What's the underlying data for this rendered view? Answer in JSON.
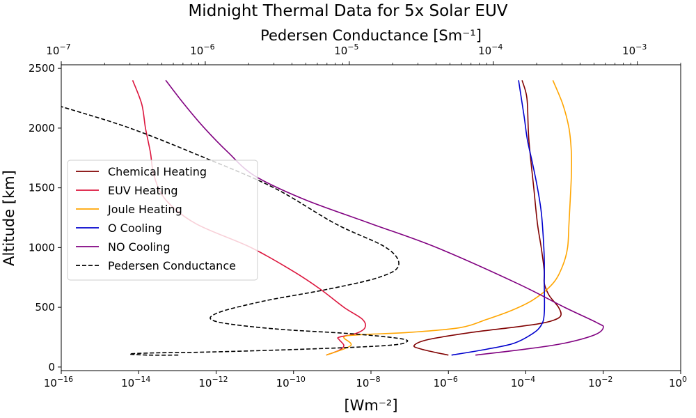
{
  "chart_data": {
    "type": "line",
    "title": "Midnight Thermal Data for 5x Solar EUV",
    "xlabel": "[Wm⁻²]",
    "ylabel": "Altitude [km]",
    "top_xlabel": "Pedersen Conductance [Sm⁻¹]",
    "xscale": "log",
    "xlim": [
      1e-16,
      1
    ],
    "top_xlim": [
      1e-07,
      0.002
    ],
    "ylim": [
      -30,
      2530
    ],
    "x_ticks": [
      1e-16,
      1e-14,
      1e-12,
      1e-10,
      1e-08,
      1e-06,
      0.0001,
      0.01,
      1
    ],
    "x_tick_labels": [
      {
        "base": "10",
        "exp": "−16"
      },
      {
        "base": "10",
        "exp": "−14"
      },
      {
        "base": "10",
        "exp": "−12"
      },
      {
        "base": "10",
        "exp": "−10"
      },
      {
        "base": "10",
        "exp": "−8"
      },
      {
        "base": "10",
        "exp": "−6"
      },
      {
        "base": "10",
        "exp": "−4"
      },
      {
        "base": "10",
        "exp": "−2"
      },
      {
        "base": "10",
        "exp": "0"
      }
    ],
    "top_x_ticks": [
      1e-07,
      1e-06,
      1e-05,
      0.0001,
      0.001
    ],
    "top_x_tick_labels": [
      {
        "base": "10",
        "exp": "−7"
      },
      {
        "base": "10",
        "exp": "−6"
      },
      {
        "base": "10",
        "exp": "−5"
      },
      {
        "base": "10",
        "exp": "−4"
      },
      {
        "base": "10",
        "exp": "−3"
      }
    ],
    "y_ticks": [
      0,
      500,
      1000,
      1500,
      2000,
      2500
    ],
    "y_tick_labels": [
      "0",
      "500",
      "1000",
      "1500",
      "2000",
      "2500"
    ],
    "legend_position": "center-left",
    "series": [
      {
        "name": "Chemical Heating",
        "color": "#800000",
        "axis": "bottom",
        "dashed": false,
        "points": [
          [
            1e-06,
            100
          ],
          [
            5e-07,
            120
          ],
          [
            2e-07,
            150
          ],
          [
            1.3e-07,
            180
          ],
          [
            3e-07,
            230
          ],
          [
            4e-06,
            290
          ],
          [
            4e-05,
            330
          ],
          [
            0.0002,
            360
          ],
          [
            0.0005,
            390
          ],
          [
            0.0008,
            430
          ],
          [
            0.0007,
            500
          ],
          [
            0.0004,
            600
          ],
          [
            0.0003,
            700
          ],
          [
            0.0003,
            800
          ],
          [
            0.00025,
            1000
          ],
          [
            0.0002,
            1200
          ],
          [
            0.00016,
            1500
          ],
          [
            0.00012,
            1900
          ],
          [
            0.00011,
            2200
          ],
          [
            0.0001,
            2300
          ],
          [
            8e-05,
            2400
          ]
        ]
      },
      {
        "name": "EUV Heating",
        "color": "#dc143c",
        "axis": "bottom",
        "dashed": false,
        "points": [
          [
            7e-10,
            100
          ],
          [
            1.5e-09,
            140
          ],
          [
            2e-09,
            180
          ],
          [
            1.5e-09,
            230
          ],
          [
            1.5e-09,
            250
          ],
          [
            4e-09,
            280
          ],
          [
            7e-09,
            330
          ],
          [
            6e-09,
            400
          ],
          [
            2e-09,
            500
          ],
          [
            5e-10,
            650
          ],
          [
            1e-10,
            800
          ],
          [
            8e-12,
            1000
          ],
          [
            3e-13,
            1200
          ],
          [
            5e-14,
            1400
          ],
          [
            2.5e-14,
            1600
          ],
          [
            2e-14,
            1800
          ],
          [
            1.5e-14,
            2000
          ],
          [
            1.2e-14,
            2200
          ],
          [
            7e-15,
            2400
          ]
        ]
      },
      {
        "name": "Joule Heating",
        "color": "#ffa500",
        "axis": "bottom",
        "dashed": false,
        "points": [
          [
            7e-10,
            100
          ],
          [
            3e-09,
            180
          ],
          [
            2e-09,
            250
          ],
          [
            5e-09,
            270
          ],
          [
            1e-07,
            290
          ],
          [
            2e-06,
            330
          ],
          [
            1e-05,
            400
          ],
          [
            4e-05,
            470
          ],
          [
            0.00015,
            560
          ],
          [
            0.0005,
            700
          ],
          [
            0.0009,
            850
          ],
          [
            0.0012,
            1000
          ],
          [
            0.0013,
            1200
          ],
          [
            0.0014,
            1400
          ],
          [
            0.0015,
            1600
          ],
          [
            0.0015,
            1800
          ],
          [
            0.0013,
            2000
          ],
          [
            0.0009,
            2200
          ],
          [
            0.0005,
            2400
          ]
        ]
      },
      {
        "name": "O Cooling",
        "color": "#0000cd",
        "axis": "bottom",
        "dashed": false,
        "points": [
          [
            1.2e-06,
            100
          ],
          [
            1e-05,
            150
          ],
          [
            5e-05,
            200
          ],
          [
            0.00015,
            280
          ],
          [
            0.00025,
            350
          ],
          [
            0.0003,
            450
          ],
          [
            0.0003,
            700
          ],
          [
            0.0003,
            900
          ],
          [
            0.00028,
            1100
          ],
          [
            0.00025,
            1300
          ],
          [
            0.0002,
            1500
          ],
          [
            0.00015,
            1700
          ],
          [
            0.00011,
            1900
          ],
          [
            9e-05,
            2100
          ],
          [
            6.5e-05,
            2400
          ]
        ]
      },
      {
        "name": "NO Cooling",
        "color": "#800080",
        "axis": "bottom",
        "dashed": false,
        "points": [
          [
            5e-06,
            100
          ],
          [
            0.0001,
            150
          ],
          [
            0.001,
            200
          ],
          [
            0.006,
            270
          ],
          [
            0.01,
            330
          ],
          [
            0.007,
            370
          ],
          [
            0.001,
            500
          ],
          [
            6e-05,
            700
          ],
          [
            5e-07,
            1000
          ],
          [
            1e-08,
            1200
          ],
          [
            2e-10,
            1400
          ],
          [
            1e-11,
            1600
          ],
          [
            2e-12,
            1800
          ],
          [
            5e-13,
            2000
          ],
          [
            1.5e-13,
            2200
          ],
          [
            5e-14,
            2400
          ]
        ]
      },
      {
        "name": "Pedersen Conductance",
        "color": "#000000",
        "axis": "top",
        "dashed": true,
        "points": [
          [
            6.5e-07,
            100
          ],
          [
            4e-07,
            100
          ],
          [
            3e-07,
            110
          ],
          [
            5e-07,
            120
          ],
          [
            1e-06,
            125
          ],
          [
            5e-06,
            150
          ],
          [
            1.8e-05,
            180
          ],
          [
            2.5e-05,
            210
          ],
          [
            2.2e-05,
            240
          ],
          [
            1e-05,
            280
          ],
          [
            3e-06,
            320
          ],
          [
            1.2e-06,
            380
          ],
          [
            1.2e-06,
            450
          ],
          [
            2.5e-06,
            550
          ],
          [
            7e-06,
            650
          ],
          [
            1.6e-05,
            750
          ],
          [
            2.2e-05,
            850
          ],
          [
            1.8e-05,
            1000
          ],
          [
            8e-06,
            1200
          ],
          [
            3e-06,
            1500
          ],
          [
            1e-06,
            1750
          ],
          [
            3e-07,
            2000
          ],
          [
            1e-07,
            2180
          ]
        ]
      }
    ]
  }
}
